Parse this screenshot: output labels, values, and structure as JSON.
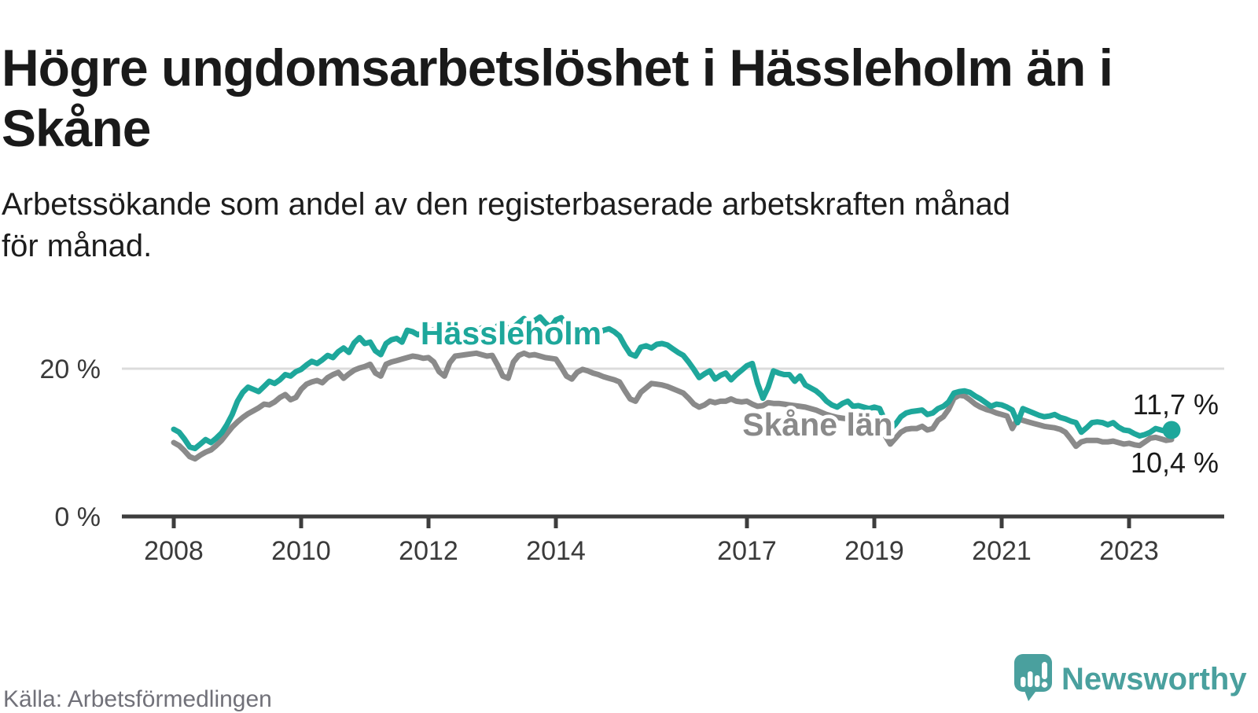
{
  "page": {
    "title": "Högre ungdomsarbetslöshet i Hässleholm än i Skåne",
    "subtitle": "Arbetssökande som andel av den registerbaserade arbetskraften månad för månad.",
    "source": "Källa: Arbetsförmedlingen",
    "brand": "Newsworthy"
  },
  "colors": {
    "hassleholm": "#1ea79b",
    "skane": "#8a8a8a",
    "axis": "#3d3d3d",
    "grid": "#dcdcdc",
    "text": "#1a1a1a",
    "brand": "#4aa09e"
  },
  "chart_data": {
    "type": "line",
    "title": "Högre ungdomsarbetslöshet i Hässleholm än i Skåne",
    "subtitle": "Arbetssökande som andel av den registerbaserade arbetskraften månad för månad.",
    "x_start": {
      "year": 2008,
      "month": 1
    },
    "frequency": "monthly",
    "x_ticks": [
      2008,
      2010,
      2012,
      2014,
      2017,
      2019,
      2021,
      2023
    ],
    "y_axis": {
      "unit": "%",
      "ticks": [
        {
          "value": 0,
          "label": "0 %"
        },
        {
          "value": 20,
          "label": "20 %"
        }
      ],
      "range": [
        0,
        30
      ]
    },
    "legend_position": "inline-labels",
    "grid": "y-at-20-only",
    "series": [
      {
        "name": "Hässleholm",
        "color": "#1ea79b",
        "end_label": "11,7 %",
        "end_value": 11.7,
        "values": [
          11.8,
          11.4,
          10.5,
          9.4,
          9.2,
          9.8,
          10.4,
          10.0,
          10.6,
          11.3,
          12.4,
          13.8,
          15.6,
          16.8,
          17.5,
          17.2,
          16.9,
          17.6,
          18.3,
          18.0,
          18.5,
          19.2,
          19.0,
          19.6,
          19.9,
          20.5,
          21.0,
          20.7,
          21.2,
          21.8,
          21.5,
          22.3,
          22.8,
          22.2,
          23.5,
          24.2,
          23.4,
          23.6,
          22.4,
          21.9,
          23.4,
          23.9,
          24.1,
          23.6,
          25.2,
          25.0,
          24.6,
          24.9,
          25.1,
          25.3,
          25.4,
          23.8,
          24.4,
          25.0,
          24.4,
          24.8,
          25.4,
          25.0,
          25.5,
          25.2,
          24.6,
          25.8,
          26.4,
          25.2,
          25.6,
          26.2,
          26.8,
          26.0,
          26.5,
          27.0,
          26.2,
          25.6,
          26.6,
          26.9,
          25.8,
          24.9,
          25.4,
          24.6,
          25.0,
          25.3,
          24.8,
          25.2,
          25.4,
          25.0,
          24.4,
          23.1,
          22.0,
          21.7,
          22.9,
          23.1,
          22.8,
          23.3,
          23.4,
          23.2,
          22.7,
          22.2,
          21.8,
          20.9,
          19.9,
          18.8,
          19.3,
          19.7,
          18.6,
          19.1,
          19.4,
          18.5,
          19.2,
          19.8,
          20.4,
          20.7,
          18.0,
          16.0,
          17.5,
          19.7,
          19.4,
          19.2,
          19.2,
          18.3,
          19.0,
          17.8,
          17.4,
          17.0,
          16.4,
          15.6,
          15.1,
          14.8,
          15.3,
          15.6,
          14.9,
          15.0,
          14.8,
          14.6,
          14.8,
          14.6,
          13.0,
          11.8,
          12.5,
          13.5,
          14.0,
          14.2,
          14.3,
          14.4,
          13.8,
          14.0,
          14.6,
          14.9,
          15.5,
          16.7,
          16.9,
          17.0,
          16.8,
          16.3,
          15.9,
          15.4,
          14.9,
          15.2,
          15.1,
          14.8,
          14.4,
          12.7,
          14.6,
          14.3,
          14.0,
          13.7,
          13.5,
          13.6,
          13.8,
          13.4,
          13.2,
          12.9,
          12.7,
          11.4,
          12.0,
          12.7,
          12.8,
          12.7,
          12.4,
          12.7,
          12.1,
          11.7,
          11.6,
          11.2,
          10.9,
          11.1,
          11.4,
          11.9,
          11.7,
          11.5,
          11.7
        ]
      },
      {
        "name": "Skåne län",
        "color": "#8a8a8a",
        "end_label": "10,4 %",
        "end_value": 10.4,
        "values": [
          10.0,
          9.6,
          8.9,
          8.1,
          7.8,
          8.3,
          8.7,
          9.0,
          9.6,
          10.3,
          11.2,
          12.1,
          12.8,
          13.4,
          13.9,
          14.3,
          14.7,
          15.2,
          15.1,
          15.5,
          16.1,
          16.5,
          15.8,
          16.1,
          17.2,
          17.9,
          18.2,
          18.4,
          18.1,
          18.8,
          19.2,
          19.5,
          18.7,
          19.3,
          19.8,
          20.1,
          20.3,
          20.6,
          19.4,
          19.0,
          20.6,
          20.9,
          21.1,
          21.3,
          21.5,
          21.7,
          21.6,
          21.4,
          21.5,
          20.9,
          19.6,
          19.0,
          20.8,
          21.7,
          21.8,
          21.9,
          22.0,
          22.1,
          21.9,
          21.7,
          21.8,
          20.5,
          19.0,
          18.7,
          20.9,
          21.8,
          22.1,
          21.8,
          21.9,
          21.7,
          21.5,
          21.4,
          21.3,
          20.2,
          19.0,
          18.6,
          19.5,
          19.9,
          19.7,
          19.4,
          19.2,
          18.9,
          18.7,
          18.5,
          18.2,
          17.0,
          15.9,
          15.6,
          16.8,
          17.4,
          18.0,
          17.9,
          17.8,
          17.6,
          17.3,
          17.0,
          16.7,
          16.0,
          15.2,
          14.8,
          15.1,
          15.6,
          15.4,
          15.6,
          15.6,
          15.9,
          15.6,
          15.5,
          15.6,
          15.2,
          14.9,
          15.0,
          15.4,
          15.3,
          15.3,
          15.2,
          15.1,
          15.0,
          14.9,
          14.8,
          14.6,
          14.4,
          14.1,
          13.8,
          13.6,
          13.4,
          13.3,
          13.2,
          13.1,
          13.0,
          12.9,
          12.8,
          12.7,
          12.3,
          11.0,
          9.8,
          10.6,
          11.4,
          11.8,
          11.9,
          11.9,
          12.2,
          11.7,
          11.9,
          13.0,
          13.5,
          14.5,
          16.0,
          16.4,
          16.3,
          15.8,
          15.2,
          14.8,
          14.5,
          14.3,
          14.0,
          13.8,
          13.6,
          11.9,
          13.2,
          13.0,
          12.8,
          12.6,
          12.4,
          12.2,
          12.1,
          12.0,
          11.8,
          11.4,
          10.5,
          9.5,
          10.1,
          10.3,
          10.3,
          10.3,
          10.1,
          10.1,
          10.2,
          10.0,
          9.8,
          9.9,
          9.7,
          9.6,
          10.1,
          10.6,
          10.7,
          10.5,
          10.3,
          10.4
        ]
      }
    ]
  }
}
